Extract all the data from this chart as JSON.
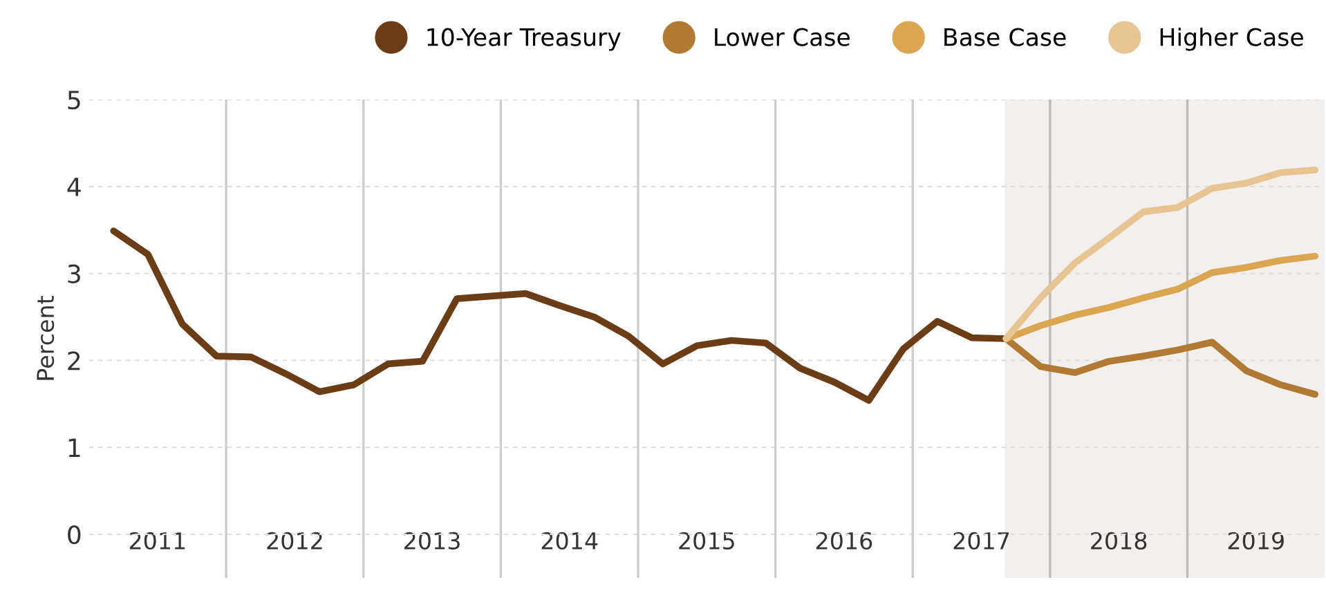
{
  "chart_data": {
    "type": "line",
    "ylabel": "Percent",
    "xlim": [
      2011,
      2020
    ],
    "ylim": [
      -0.5,
      5
    ],
    "yticks": [
      0,
      1,
      2,
      3,
      4,
      5
    ],
    "xticks": [
      {
        "value": 2011.5,
        "label": "2011"
      },
      {
        "value": 2012.5,
        "label": "2012"
      },
      {
        "value": 2013.5,
        "label": "2013"
      },
      {
        "value": 2014.5,
        "label": "2014"
      },
      {
        "value": 2015.5,
        "label": "2015"
      },
      {
        "value": 2016.5,
        "label": "2016"
      },
      {
        "value": 2017.5,
        "label": "2017"
      },
      {
        "value": 2018.5,
        "label": "2018"
      },
      {
        "value": 2019.5,
        "label": "2019"
      }
    ],
    "grid": "y",
    "legend": "top right",
    "marker": "none",
    "line_style": "solid",
    "series": [
      {
        "name": "10-Year Treasury",
        "color": "#6b3d16",
        "x": [
          2011.18,
          2011.43,
          2011.68,
          2011.93,
          2012.18,
          2012.43,
          2012.68,
          2012.93,
          2013.18,
          2013.43,
          2013.68,
          2013.93,
          2014.18,
          2014.43,
          2014.68,
          2014.93,
          2015.18,
          2015.43,
          2015.68,
          2015.93,
          2016.18,
          2016.43,
          2016.68,
          2016.93,
          2017.18,
          2017.43,
          2017.68
        ],
        "values": [
          3.49,
          3.22,
          2.42,
          2.05,
          2.04,
          1.85,
          1.64,
          1.72,
          1.96,
          1.99,
          2.71,
          2.74,
          2.77,
          2.63,
          2.5,
          2.28,
          1.96,
          2.17,
          2.23,
          2.2,
          1.91,
          1.75,
          1.54,
          2.13,
          2.45,
          2.26,
          2.25
        ]
      },
      {
        "name": "Lower Case",
        "color": "#b07a35",
        "x": [
          2017.68,
          2017.93,
          2018.18,
          2018.43,
          2018.68,
          2018.93,
          2019.18,
          2019.43,
          2019.68,
          2019.93
        ],
        "values": [
          2.25,
          1.93,
          1.86,
          1.99,
          2.05,
          2.12,
          2.21,
          1.88,
          1.72,
          1.61
        ]
      },
      {
        "name": "Base Case",
        "color": "#dba652",
        "x": [
          2017.68,
          2017.93,
          2018.18,
          2018.43,
          2018.68,
          2018.93,
          2019.18,
          2019.43,
          2019.68,
          2019.93
        ],
        "values": [
          2.25,
          2.4,
          2.52,
          2.61,
          2.72,
          2.82,
          3.01,
          3.07,
          3.15,
          3.2
        ]
      },
      {
        "name": "Higher Case",
        "color": "#e8c493",
        "x": [
          2017.68,
          2017.93,
          2018.18,
          2018.43,
          2018.68,
          2018.93,
          2019.18,
          2019.43,
          2019.68,
          2019.93
        ],
        "values": [
          2.25,
          2.72,
          3.12,
          3.41,
          3.71,
          3.76,
          3.98,
          4.04,
          4.16,
          4.19
        ]
      }
    ],
    "ref_lines": [
      {
        "axis": "x",
        "value": 2012,
        "color": "#cccccc"
      },
      {
        "axis": "x",
        "value": 2013,
        "color": "#cccccc"
      },
      {
        "axis": "x",
        "value": 2014,
        "color": "#cccccc"
      },
      {
        "axis": "x",
        "value": 2015,
        "color": "#cccccc"
      },
      {
        "axis": "x",
        "value": 2016,
        "color": "#cccccc"
      },
      {
        "axis": "x",
        "value": 2017,
        "color": "#cccccc"
      },
      {
        "axis": "x",
        "value": 2018,
        "color": "#bbbbbb"
      },
      {
        "axis": "x",
        "value": 2019,
        "color": "#bbbbbb"
      }
    ],
    "bands": [
      {
        "axis": "x",
        "from": 2017.67,
        "to": 2020,
        "color": "#f3efec"
      }
    ]
  }
}
